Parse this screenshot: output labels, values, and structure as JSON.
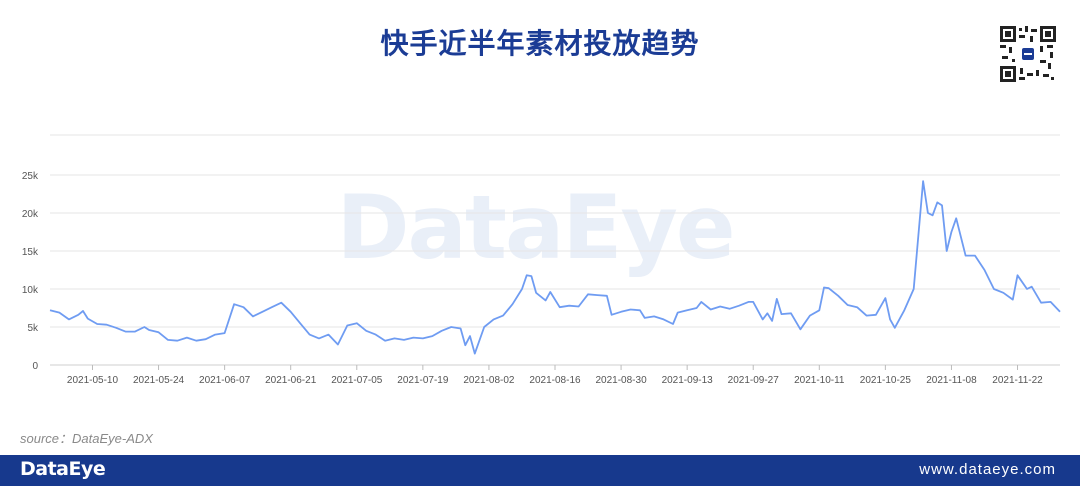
{
  "header": {
    "title": "快手近半年素材投放趋势"
  },
  "footer": {
    "logo": "DataEye",
    "url": "www.dataeye.com"
  },
  "source": "source：DataEye-ADX",
  "watermark": "DataEye",
  "colors": {
    "line": "#6f9cf2",
    "title": "#1b3c95",
    "footer": "#17398d",
    "grid": "#e6e6e6"
  },
  "chart_data": {
    "type": "line",
    "title": "快手近半年素材投放趋势",
    "xlabel": "",
    "ylabel": "",
    "ylim": [
      0,
      25000
    ],
    "y_ticks": [
      {
        "value": 0,
        "label": "0"
      },
      {
        "value": 5000,
        "label": "5k"
      },
      {
        "value": 10000,
        "label": "10k"
      },
      {
        "value": 15000,
        "label": "15k"
      },
      {
        "value": 20000,
        "label": "20k"
      },
      {
        "value": 25000,
        "label": "25k"
      }
    ],
    "x_start": "2021-05-01",
    "x_end": "2021-12-01",
    "x_tick_labels": [
      "2021-05-10",
      "2021-05-24",
      "2021-06-07",
      "2021-06-21",
      "2021-07-05",
      "2021-07-19",
      "2021-08-02",
      "2021-08-16",
      "2021-08-30",
      "2021-09-13",
      "2021-09-27",
      "2021-10-11",
      "2021-10-25",
      "2021-11-08",
      "2021-11-22"
    ],
    "grid": true,
    "series": [
      {
        "points": [
          [
            "2021-05-01",
            7200
          ],
          [
            "2021-05-03",
            6900
          ],
          [
            "2021-05-05",
            6000
          ],
          [
            "2021-05-07",
            6600
          ],
          [
            "2021-05-08",
            7100
          ],
          [
            "2021-05-09",
            6100
          ],
          [
            "2021-05-11",
            5400
          ],
          [
            "2021-05-13",
            5300
          ],
          [
            "2021-05-15",
            4900
          ],
          [
            "2021-05-17",
            4400
          ],
          [
            "2021-05-19",
            4400
          ],
          [
            "2021-05-21",
            5000
          ],
          [
            "2021-05-22",
            4600
          ],
          [
            "2021-05-24",
            4300
          ],
          [
            "2021-05-26",
            3300
          ],
          [
            "2021-05-28",
            3200
          ],
          [
            "2021-05-30",
            3600
          ],
          [
            "2021-06-01",
            3200
          ],
          [
            "2021-06-03",
            3400
          ],
          [
            "2021-06-05",
            4000
          ],
          [
            "2021-06-07",
            4200
          ],
          [
            "2021-06-09",
            8000
          ],
          [
            "2021-06-11",
            7600
          ],
          [
            "2021-06-13",
            6400
          ],
          [
            "2021-06-15",
            7000
          ],
          [
            "2021-06-17",
            7600
          ],
          [
            "2021-06-19",
            8200
          ],
          [
            "2021-06-21",
            7000
          ],
          [
            "2021-06-23",
            5500
          ],
          [
            "2021-06-25",
            4000
          ],
          [
            "2021-06-27",
            3500
          ],
          [
            "2021-06-29",
            4000
          ],
          [
            "2021-07-01",
            2700
          ],
          [
            "2021-07-03",
            5200
          ],
          [
            "2021-07-05",
            5500
          ],
          [
            "2021-07-07",
            4500
          ],
          [
            "2021-07-09",
            4000
          ],
          [
            "2021-07-11",
            3200
          ],
          [
            "2021-07-13",
            3500
          ],
          [
            "2021-07-15",
            3300
          ],
          [
            "2021-07-17",
            3600
          ],
          [
            "2021-07-19",
            3500
          ],
          [
            "2021-07-21",
            3800
          ],
          [
            "2021-07-23",
            4500
          ],
          [
            "2021-07-25",
            5000
          ],
          [
            "2021-07-27",
            4800
          ],
          [
            "2021-07-28",
            2600
          ],
          [
            "2021-07-29",
            3800
          ],
          [
            "2021-07-30",
            1500
          ],
          [
            "2021-08-01",
            5000
          ],
          [
            "2021-08-03",
            6000
          ],
          [
            "2021-08-05",
            6500
          ],
          [
            "2021-08-07",
            8000
          ],
          [
            "2021-08-09",
            10000
          ],
          [
            "2021-08-10",
            11800
          ],
          [
            "2021-08-11",
            11700
          ],
          [
            "2021-08-12",
            9500
          ],
          [
            "2021-08-14",
            8500
          ],
          [
            "2021-08-15",
            9600
          ],
          [
            "2021-08-17",
            7600
          ],
          [
            "2021-08-19",
            7800
          ],
          [
            "2021-08-21",
            7700
          ],
          [
            "2021-08-23",
            9300
          ],
          [
            "2021-08-25",
            9200
          ],
          [
            "2021-08-27",
            9100
          ],
          [
            "2021-08-28",
            6600
          ],
          [
            "2021-08-30",
            7000
          ],
          [
            "2021-09-01",
            7300
          ],
          [
            "2021-09-03",
            7200
          ],
          [
            "2021-09-04",
            6200
          ],
          [
            "2021-09-06",
            6400
          ],
          [
            "2021-09-08",
            6000
          ],
          [
            "2021-09-10",
            5400
          ],
          [
            "2021-09-11",
            6900
          ],
          [
            "2021-09-13",
            7200
          ],
          [
            "2021-09-15",
            7500
          ],
          [
            "2021-09-16",
            8300
          ],
          [
            "2021-09-18",
            7300
          ],
          [
            "2021-09-20",
            7700
          ],
          [
            "2021-09-22",
            7400
          ],
          [
            "2021-09-24",
            7800
          ],
          [
            "2021-09-26",
            8300
          ],
          [
            "2021-09-27",
            8300
          ],
          [
            "2021-09-29",
            6000
          ],
          [
            "2021-09-30",
            6800
          ],
          [
            "2021-10-01",
            5800
          ],
          [
            "2021-10-02",
            8700
          ],
          [
            "2021-10-03",
            6700
          ],
          [
            "2021-10-05",
            6800
          ],
          [
            "2021-10-07",
            4700
          ],
          [
            "2021-10-09",
            6500
          ],
          [
            "2021-10-11",
            7200
          ],
          [
            "2021-10-12",
            10200
          ],
          [
            "2021-10-13",
            10100
          ],
          [
            "2021-10-15",
            9100
          ],
          [
            "2021-10-17",
            7900
          ],
          [
            "2021-10-19",
            7600
          ],
          [
            "2021-10-21",
            6500
          ],
          [
            "2021-10-23",
            6600
          ],
          [
            "2021-10-25",
            8800
          ],
          [
            "2021-10-26",
            6000
          ],
          [
            "2021-10-27",
            4900
          ],
          [
            "2021-10-29",
            7200
          ],
          [
            "2021-10-31",
            10000
          ],
          [
            "2021-11-02",
            24200
          ],
          [
            "2021-11-03",
            20000
          ],
          [
            "2021-11-04",
            19700
          ],
          [
            "2021-11-05",
            21400
          ],
          [
            "2021-11-06",
            21000
          ],
          [
            "2021-11-07",
            15000
          ],
          [
            "2021-11-08",
            17500
          ],
          [
            "2021-11-09",
            19300
          ],
          [
            "2021-11-11",
            14400
          ],
          [
            "2021-11-13",
            14400
          ],
          [
            "2021-11-15",
            12500
          ],
          [
            "2021-11-17",
            10000
          ],
          [
            "2021-11-19",
            9500
          ],
          [
            "2021-11-21",
            8600
          ],
          [
            "2021-11-22",
            11800
          ],
          [
            "2021-11-24",
            10000
          ],
          [
            "2021-11-25",
            10300
          ],
          [
            "2021-11-27",
            8200
          ],
          [
            "2021-11-29",
            8300
          ],
          [
            "2021-12-01",
            7000
          ]
        ]
      }
    ]
  }
}
